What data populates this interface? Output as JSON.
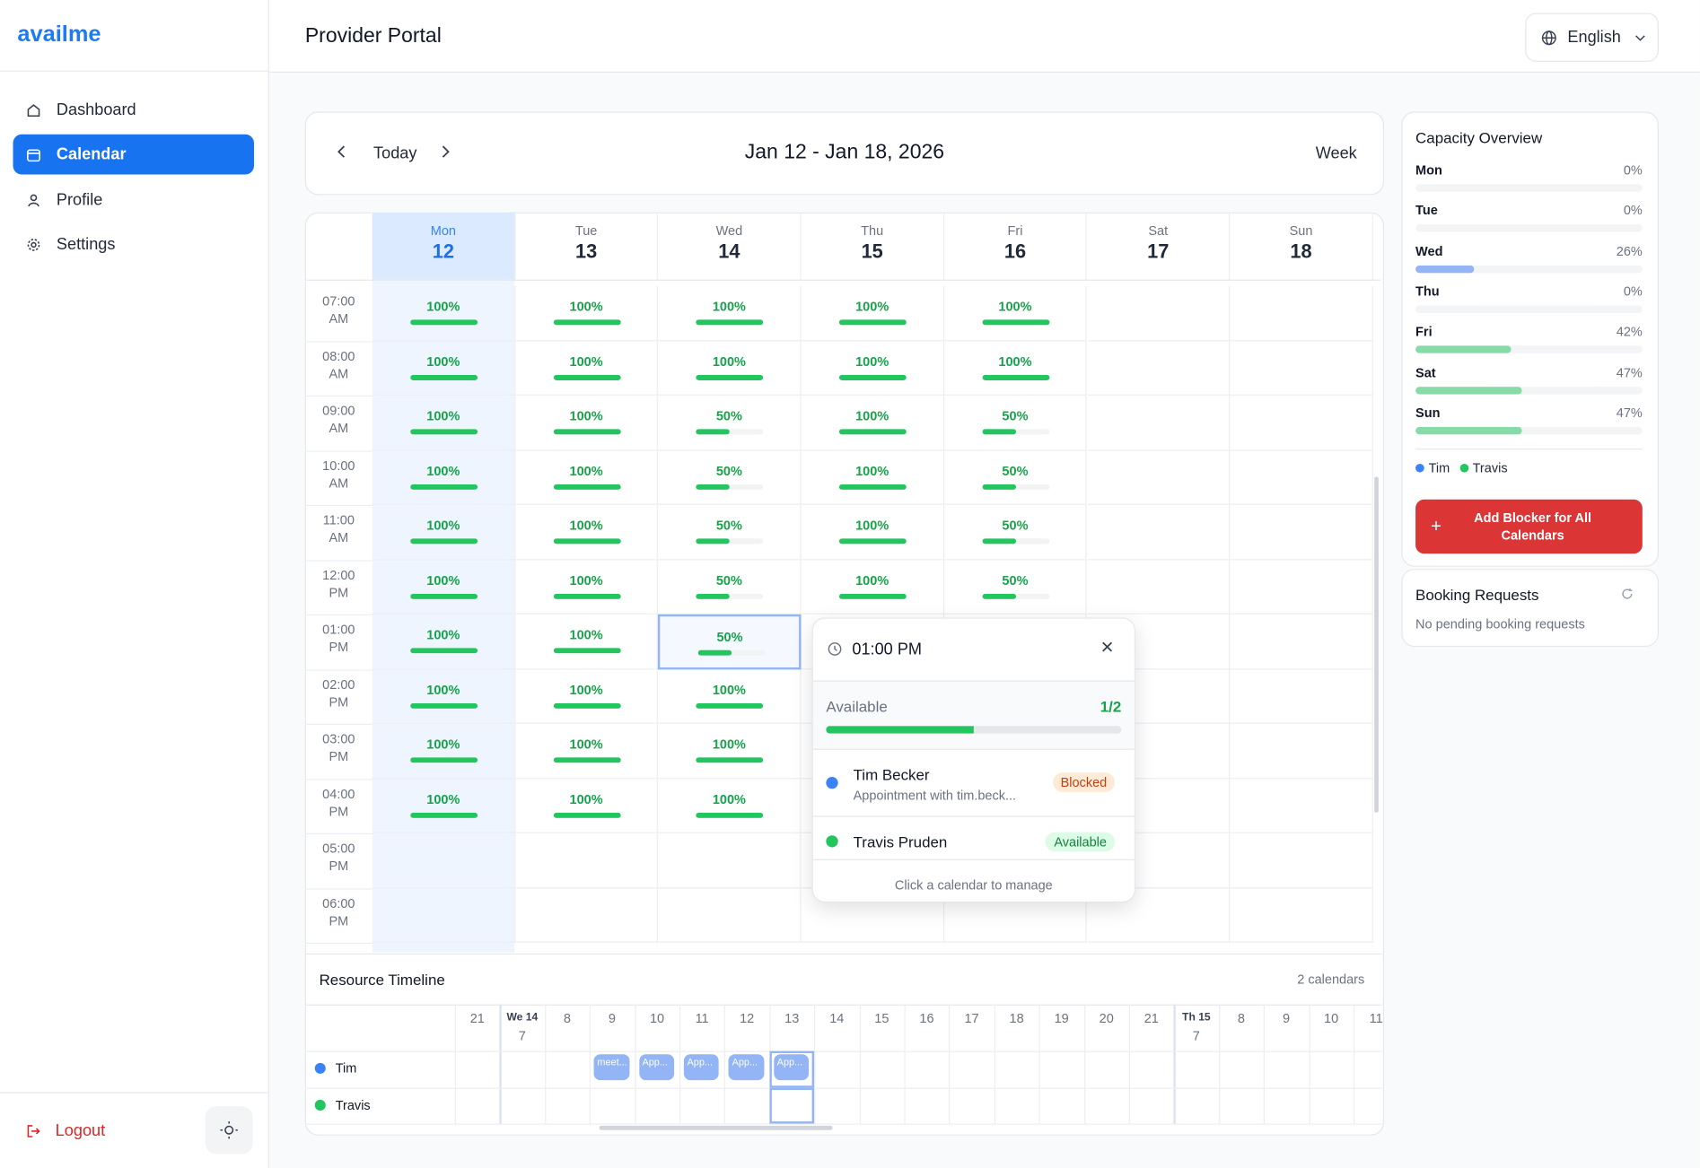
{
  "sidebar": {
    "brand": "availme",
    "nav": [
      "Dashboard",
      "Calendar",
      "Profile",
      "Settings"
    ],
    "logout": "Logout"
  },
  "header": {
    "title": "Provider Portal",
    "language": "English"
  },
  "toolbar": {
    "today": "Today",
    "range": "Jan 12 - Jan 18, 2026",
    "view": "Week"
  },
  "days": [
    {
      "name": "Mon",
      "date": 12
    },
    {
      "name": "Tue",
      "date": 13
    },
    {
      "name": "Wed",
      "date": 14
    },
    {
      "name": "Thu",
      "date": 15
    },
    {
      "name": "Fri",
      "date": 16
    },
    {
      "name": "Sat",
      "date": 17
    },
    {
      "name": "Sun",
      "date": 18
    }
  ],
  "slots": [
    "07:00 AM",
    "08:00 AM",
    "09:00 AM",
    "10:00 AM",
    "11:00 AM",
    "12:00 PM",
    "01:00 PM",
    "02:00 PM",
    "03:00 PM",
    "04:00 PM",
    "05:00 PM",
    "06:00 PM"
  ],
  "cells": [
    [
      100,
      100,
      100,
      100,
      100,
      null,
      null
    ],
    [
      100,
      100,
      100,
      100,
      100,
      null,
      null
    ],
    [
      100,
      100,
      50,
      100,
      50,
      null,
      null
    ],
    [
      100,
      100,
      50,
      100,
      50,
      null,
      null
    ],
    [
      100,
      100,
      50,
      100,
      50,
      null,
      null
    ],
    [
      100,
      100,
      50,
      100,
      50,
      null,
      null
    ],
    [
      100,
      100,
      50,
      null,
      null,
      null,
      null
    ],
    [
      100,
      100,
      100,
      null,
      null,
      null,
      null
    ],
    [
      100,
      100,
      100,
      null,
      null,
      null,
      null
    ],
    [
      100,
      100,
      100,
      null,
      null,
      null,
      null
    ],
    [
      null,
      null,
      null,
      null,
      null,
      null,
      null
    ],
    [
      null,
      null,
      null,
      null,
      null,
      null,
      null
    ]
  ],
  "cell_labels": [
    [
      "100%",
      "100%",
      "100%",
      "100%",
      "100%",
      null,
      null
    ],
    [
      "100%",
      "100%",
      "100%",
      "100%",
      "100%",
      null,
      null
    ],
    [
      "100%",
      "100%",
      "50%",
      "100%",
      "50%",
      null,
      null
    ],
    [
      "100%",
      "100%",
      "50%",
      "100%",
      "50%",
      null,
      null
    ],
    [
      "100%",
      "100%",
      "50%",
      "100%",
      "50%",
      null,
      null
    ],
    [
      "100%",
      "100%",
      "50%",
      "100%",
      "50%",
      null,
      null
    ],
    [
      "100%",
      "100%",
      "50%",
      null,
      null,
      null,
      null
    ],
    [
      "100%",
      "100%",
      "100%",
      null,
      null,
      null,
      null
    ],
    [
      "100%",
      "100%",
      "100%",
      null,
      null,
      null,
      null
    ],
    [
      "100%",
      "100%",
      "100%",
      null,
      null,
      null,
      null
    ],
    [
      null,
      null,
      null,
      null,
      null,
      null,
      null
    ],
    [
      null,
      null,
      null,
      null,
      null,
      null,
      null
    ]
  ],
  "capacity": {
    "title": "Capacity Overview",
    "items": [
      {
        "day": "Mon",
        "value": 0,
        "label": "0%",
        "color": "#93b4f5"
      },
      {
        "day": "Tue",
        "value": 0,
        "label": "0%",
        "color": "#93b4f5"
      },
      {
        "day": "Wed",
        "value": 26,
        "label": "26%",
        "color": "#93b4f5"
      },
      {
        "day": "Thu",
        "value": 0,
        "label": "0%",
        "color": "#86dba8"
      },
      {
        "day": "Fri",
        "value": 42,
        "label": "42%",
        "color": "#86dba8"
      },
      {
        "day": "Sat",
        "value": 47,
        "label": "47%",
        "color": "#86dba8"
      },
      {
        "day": "Sun",
        "value": 47,
        "label": "47%",
        "color": "#86dba8"
      }
    ],
    "legend": [
      {
        "name": "Tim",
        "color": "#3b82f6"
      },
      {
        "name": "Travis",
        "color": "#22c55e"
      }
    ],
    "button": "Add Blocker for All Calendars"
  },
  "booking": {
    "title": "Booking Requests",
    "empty": "No pending booking requests"
  },
  "popup": {
    "time": "01:00 PM",
    "status": "Available",
    "available": 1,
    "total": 2,
    "ratio_label": "1/2",
    "people": [
      {
        "name": "Tim Becker",
        "detail": "Appointment with tim.beck...",
        "badge": "Blocked",
        "color": "#3b82f6"
      },
      {
        "name": "Travis Pruden",
        "badge": "Available",
        "color": "#22c55e"
      }
    ],
    "footer": "Click a calendar to manage"
  },
  "timeline": {
    "title": "Resource Timeline",
    "count": "2 calendars",
    "columns": [
      {
        "hour": 21
      },
      {
        "day": "We 14",
        "hour": 7
      },
      {
        "hour": 8
      },
      {
        "hour": 9
      },
      {
        "hour": 10
      },
      {
        "hour": 11
      },
      {
        "hour": 12
      },
      {
        "hour": 13
      },
      {
        "hour": 14
      },
      {
        "hour": 15
      },
      {
        "hour": 16
      },
      {
        "hour": 17
      },
      {
        "hour": 18
      },
      {
        "hour": 19
      },
      {
        "hour": 20
      },
      {
        "hour": 21
      },
      {
        "day": "Th 15",
        "hour": 7
      },
      {
        "hour": 8
      },
      {
        "hour": 9
      },
      {
        "hour": 10
      },
      {
        "hour": 11
      }
    ],
    "rows": [
      {
        "name": "Tim",
        "color": "#3b82f6",
        "events": [
          null,
          null,
          null,
          "meet...",
          "App...",
          "App...",
          "App...",
          "App...",
          null,
          null,
          null,
          null,
          null,
          null,
          null,
          null,
          null,
          null,
          null,
          null,
          null
        ]
      },
      {
        "name": "Travis",
        "color": "#22c55e",
        "events": [
          null,
          null,
          null,
          null,
          null,
          null,
          null,
          null,
          null,
          null,
          null,
          null,
          null,
          null,
          null,
          null,
          null,
          null,
          null,
          null,
          null
        ]
      }
    ]
  }
}
